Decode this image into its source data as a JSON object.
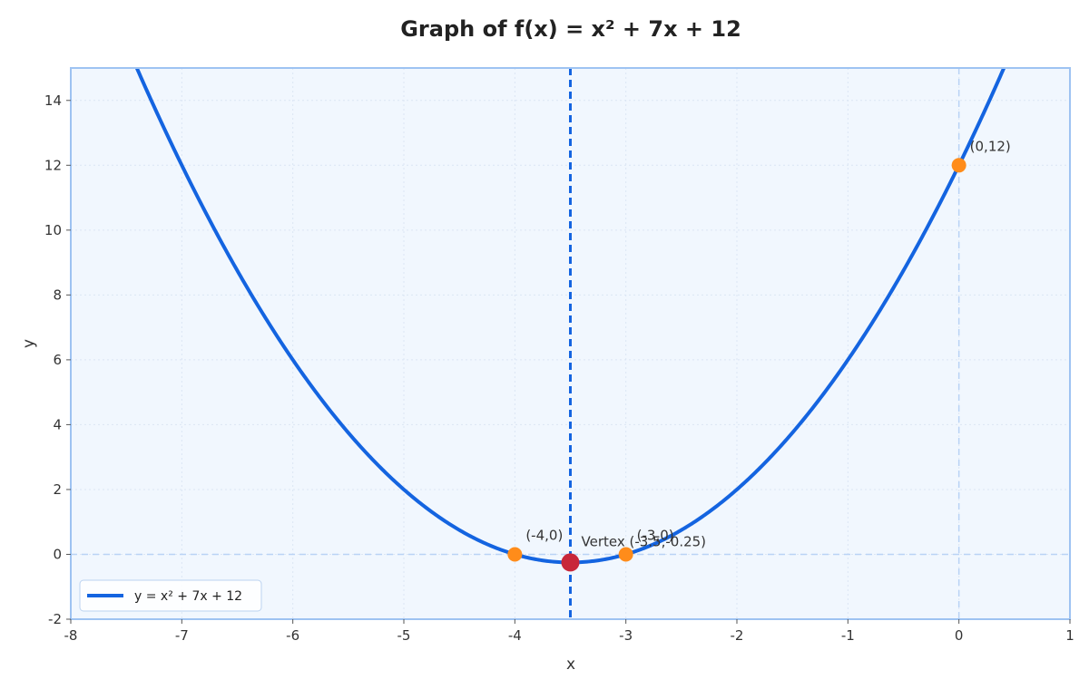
{
  "chart_data": {
    "type": "line",
    "title": "Graph of f(x) = x² + 7x + 12",
    "xlabel": "x",
    "ylabel": "y",
    "xlim": [
      -8,
      1
    ],
    "ylim": [
      -2,
      15
    ],
    "x_ticks": [
      -8,
      -7,
      -6,
      -5,
      -4,
      -3,
      -2,
      -1,
      0,
      1
    ],
    "y_ticks": [
      -2,
      0,
      2,
      4,
      6,
      8,
      10,
      12,
      14
    ],
    "grid": true,
    "function": {
      "a": 1,
      "b": 7,
      "c": 12
    },
    "series": [
      {
        "name": "y = x² + 7x + 12",
        "color": "#1464e0"
      }
    ],
    "axis_of_symmetry": {
      "x": -3.5,
      "color": "#1464e0"
    },
    "points": [
      {
        "label": "(-4,0)",
        "x": -4,
        "y": 0,
        "color": "#ff8c1a"
      },
      {
        "label": "(-3,0)",
        "x": -3,
        "y": 0,
        "color": "#ff8c1a"
      },
      {
        "label": "(0,12)",
        "x": 0,
        "y": 12,
        "color": "#ff8c1a"
      },
      {
        "label": "Vertex (-3.5,-0.25)",
        "x": -3.5,
        "y": -0.25,
        "color": "#c8273a"
      }
    ],
    "legend": {
      "placement": "bottom-left",
      "entries": [
        "y = x² + 7x + 12"
      ]
    },
    "colors": {
      "plot_background": "#f1f7fe",
      "frame": "#9ec3f2",
      "reference_lines": "#b9d3f5",
      "grid": "#dbe6f4"
    }
  }
}
